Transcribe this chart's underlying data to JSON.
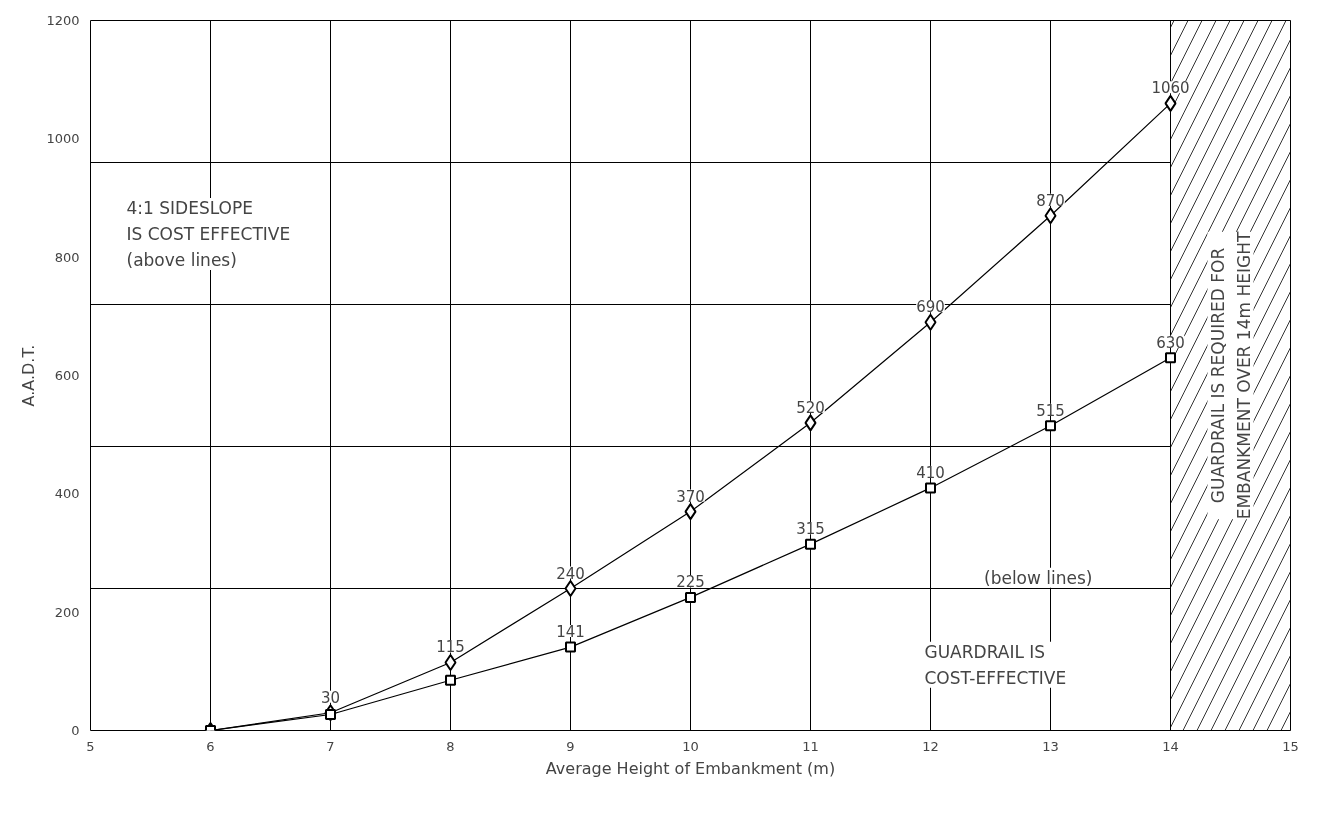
{
  "chart_data": {
    "type": "line",
    "xlabel": "Average Height of Embankment (m)",
    "ylabel": "A.A.D.T.",
    "x": [
      6,
      7,
      8,
      9,
      10,
      11,
      12,
      13,
      14
    ],
    "series": [
      {
        "color": "#000000",
        "marker": "diamond",
        "values": [
          0,
          30,
          115,
          240,
          370,
          520,
          690,
          870,
          1060
        ],
        "value_labels": [
          null,
          "30",
          "115",
          "240",
          "370",
          "520",
          "690",
          "870",
          "1060"
        ]
      },
      {
        "color": "#000000",
        "marker": "square",
        "values": [
          0,
          27,
          85,
          141,
          225,
          315,
          410,
          515,
          630
        ],
        "value_labels": [
          null,
          null,
          null,
          "141",
          "225",
          "315",
          "410",
          "515",
          "630"
        ]
      }
    ],
    "xlim": [
      5,
      15
    ],
    "xticks": [
      5,
      6,
      7,
      8,
      9,
      10,
      11,
      12,
      13,
      14,
      15
    ],
    "ylim": [
      0,
      1200
    ],
    "yticks": [
      0,
      200,
      400,
      600,
      800,
      1000,
      1200
    ],
    "grid": "x",
    "line_style": "solid",
    "ref_lines": [
      {
        "axis": "y",
        "value": 240
      },
      {
        "axis": "y",
        "value": 480
      },
      {
        "axis": "y",
        "value": 720
      },
      {
        "axis": "y",
        "value": 960
      }
    ],
    "bands": [
      {
        "axis": "x",
        "from": 14,
        "to": 15,
        "label": "GUARDRAIL IS REQUIRED FOR\nEMBANKMENT OVER 14m HEIGHT"
      }
    ],
    "annotations": [
      "4:1 SIDESLOPE\nIS COST EFFECTIVE\n(above lines)",
      "(below lines)",
      "GUARDRAIL IS\nCOST-EFFECTIVE"
    ]
  }
}
